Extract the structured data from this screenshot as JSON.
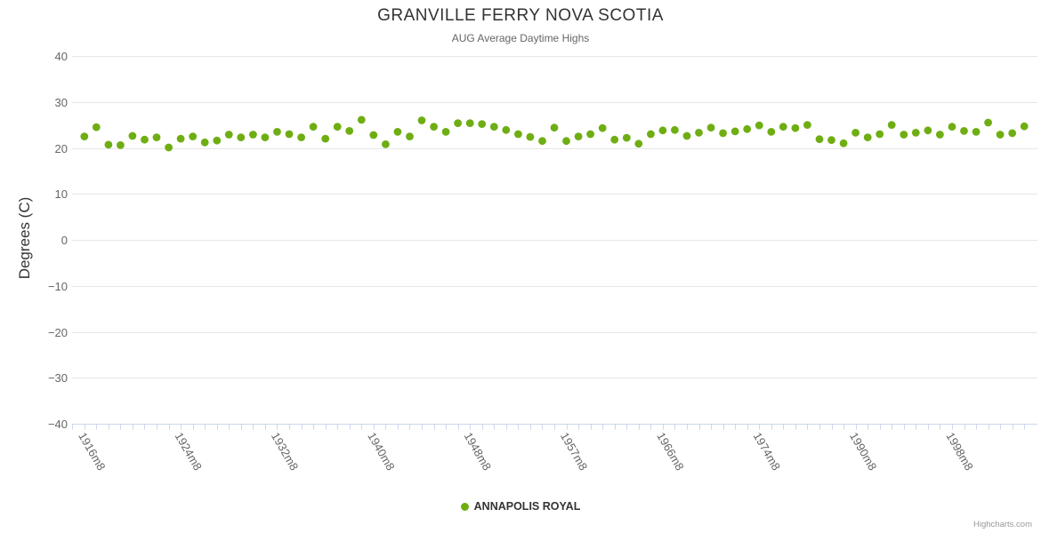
{
  "chart": {
    "title": "GRANVILLE FERRY NOVA SCOTIA",
    "subtitle": "AUG Average Daytime Highs",
    "y_axis_title": "Degrees (C)",
    "legend": {
      "series_label": "ANNAPOLIS ROYAL"
    },
    "credits": "Highcharts.com"
  },
  "chart_data": {
    "type": "scatter",
    "title": "GRANVILLE FERRY NOVA SCOTIA",
    "subtitle": "AUG Average Daytime Highs",
    "xlabel": "",
    "ylabel": "Degrees (C)",
    "ylim": [
      -40,
      40
    ],
    "y_ticks": [
      40,
      30,
      20,
      10,
      0,
      -10,
      -20,
      -30,
      -40
    ],
    "grid": true,
    "legend_position": "bottom-center",
    "series_name": "ANNAPOLIS ROYAL",
    "n_points": 79,
    "x_tick_labels": [
      {
        "index": 0,
        "label": "1916m8"
      },
      {
        "index": 8,
        "label": "1924m8"
      },
      {
        "index": 16,
        "label": "1932m8"
      },
      {
        "index": 24,
        "label": "1940m8"
      },
      {
        "index": 32,
        "label": "1948m8"
      },
      {
        "index": 40,
        "label": "1957m8"
      },
      {
        "index": 48,
        "label": "1966m8"
      },
      {
        "index": 56,
        "label": "1974m8"
      },
      {
        "index": 64,
        "label": "1990m8"
      },
      {
        "index": 72,
        "label": "1998m8"
      }
    ],
    "values": [
      22.5,
      24.5,
      20.7,
      20.6,
      22.6,
      21.8,
      22.3,
      20.1,
      22.0,
      22.5,
      21.2,
      21.6,
      22.9,
      22.3,
      22.9,
      22.3,
      23.5,
      23.0,
      22.3,
      24.6,
      22.0,
      24.6,
      23.7,
      26.1,
      22.8,
      20.8,
      23.5,
      22.5,
      26.0,
      24.6,
      23.5,
      25.4,
      25.4,
      25.2,
      24.6,
      23.9,
      23.0,
      22.4,
      21.5,
      24.4,
      21.5,
      22.5,
      23.0,
      24.3,
      21.8,
      22.2,
      20.9,
      23.0,
      23.8,
      23.9,
      22.6,
      23.3,
      24.4,
      23.2,
      23.6,
      24.1,
      24.9,
      23.5,
      24.6,
      24.3,
      25.0,
      21.9,
      21.7,
      21.0,
      23.3,
      22.3,
      23.0,
      25.0,
      22.9,
      23.3,
      23.8,
      22.9,
      24.6,
      23.7,
      23.5,
      25.5,
      22.9,
      23.2,
      24.7
    ],
    "colors": {
      "marker": "#6fae13",
      "gridline": "#e6e6e6",
      "axis_line": "#ccd6eb",
      "title_text": "#333333",
      "label_text": "#666666",
      "credits_text": "#999999"
    }
  }
}
